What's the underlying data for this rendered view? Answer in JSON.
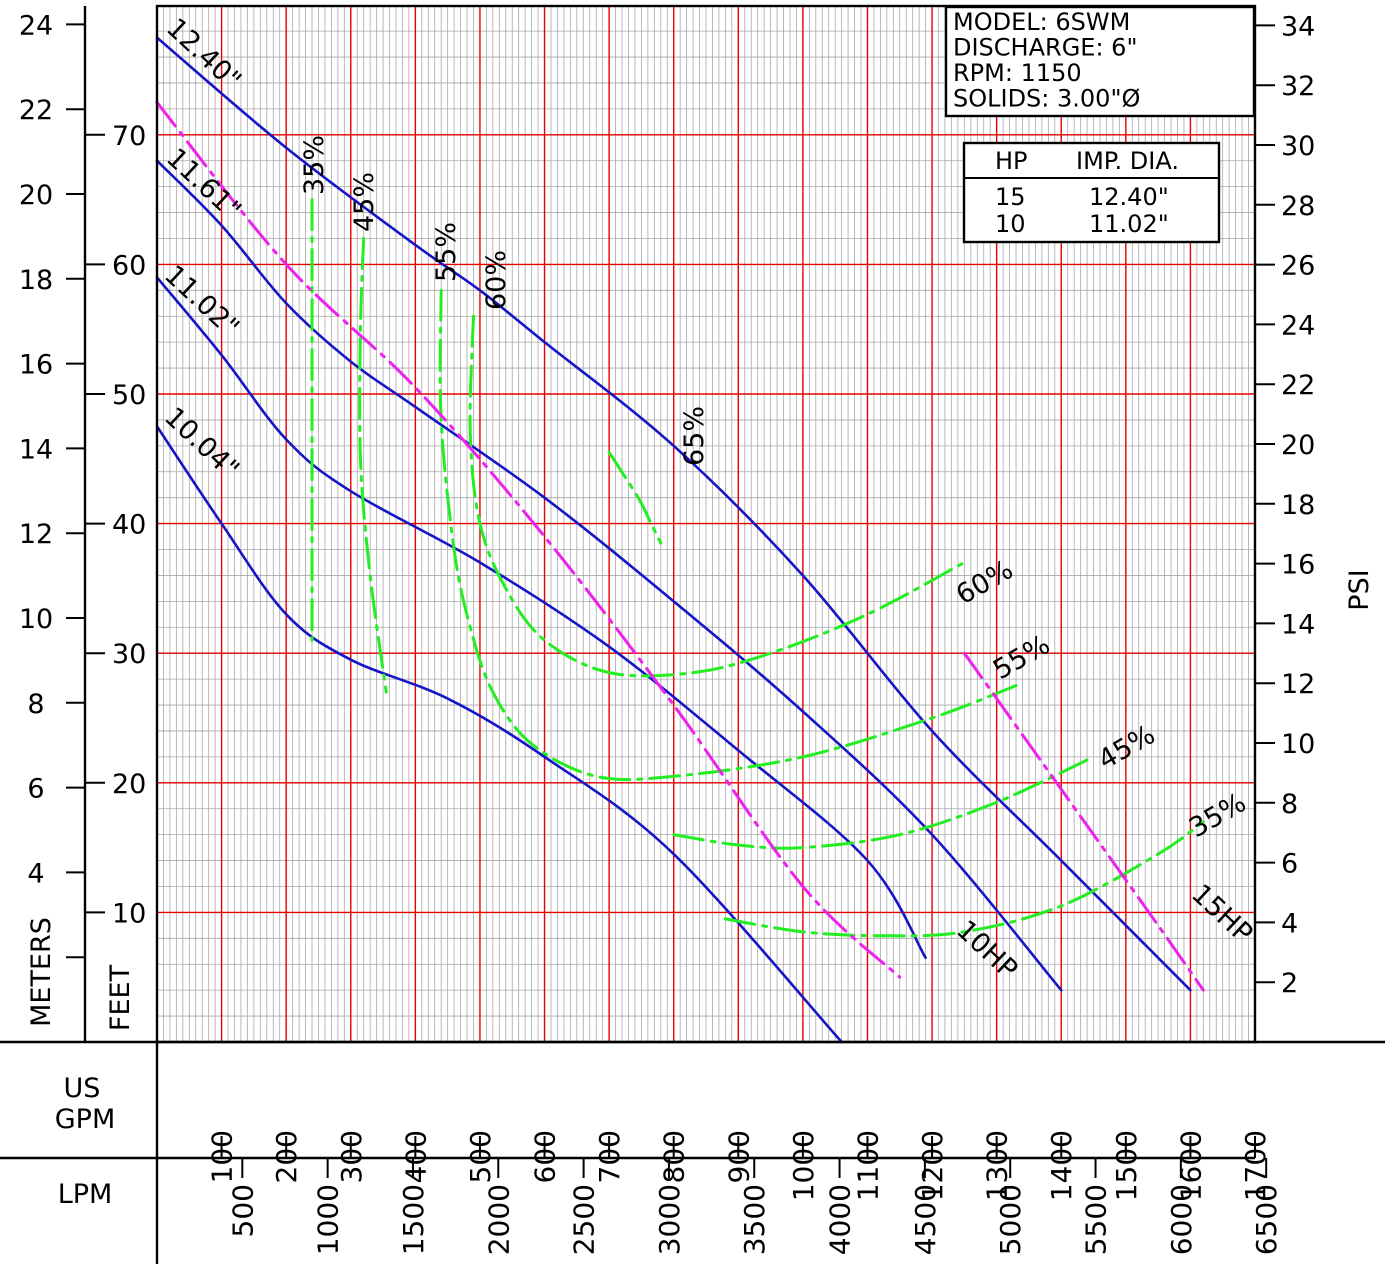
{
  "chart_data": {
    "type": "line",
    "title": "",
    "x_unit_label": [
      "US",
      "GPM"
    ],
    "x_secondary_label": "LPM",
    "y_left_outer_label": "METERS",
    "y_left_inner_label": "FEET",
    "y_right_label": "PSI",
    "xlim": [
      0,
      1700
    ],
    "ylim_feet": [
      0,
      78.5
    ],
    "x_ticks_gpm": [
      "100",
      "200",
      "300",
      "400",
      "500",
      "600",
      "700",
      "800",
      "900",
      "1000",
      "1100",
      "1200",
      "1300",
      "1400",
      "1500",
      "1600",
      "1700"
    ],
    "x_ticks_lpm": [
      "500",
      "1000",
      "1500",
      "2000",
      "2500",
      "3000",
      "3500",
      "4000",
      "4500",
      "5000",
      "5500",
      "6000",
      "6500"
    ],
    "y_ticks_meters": [
      "4",
      "6",
      "8",
      "10",
      "12",
      "14",
      "16",
      "18",
      "20",
      "22",
      "24"
    ],
    "y_ticks_feet": [
      "10",
      "20",
      "30",
      "40",
      "50",
      "60",
      "70"
    ],
    "y_ticks_psi": [
      "2",
      "4",
      "6",
      "8",
      "10",
      "12",
      "14",
      "16",
      "18",
      "20",
      "22",
      "24",
      "26",
      "28",
      "30",
      "32",
      "34"
    ],
    "model_box": [
      "MODEL: 6SWM",
      "DISCHARGE: 6\"",
      "RPM: 1150",
      "SOLIDS: 3.00\"Ø"
    ],
    "hp_table": {
      "headers": [
        "HP",
        "IMP. DIA."
      ],
      "rows": [
        [
          "15",
          "12.40\""
        ],
        [
          "10",
          "11.02\""
        ]
      ]
    },
    "series": [
      {
        "name": "12.40\"",
        "kind": "impeller",
        "color": "#1515c8",
        "points": [
          [
            0,
            77.5
          ],
          [
            200,
            69
          ],
          [
            400,
            61.5
          ],
          [
            500,
            58
          ],
          [
            600,
            54
          ],
          [
            800,
            46
          ],
          [
            1000,
            36
          ],
          [
            1200,
            24
          ],
          [
            1400,
            14
          ],
          [
            1600,
            4
          ]
        ]
      },
      {
        "name": "11.61\"",
        "kind": "impeller",
        "color": "#1515c8",
        "points": [
          [
            0,
            68
          ],
          [
            100,
            63
          ],
          [
            200,
            57
          ],
          [
            300,
            52.5
          ],
          [
            400,
            49
          ],
          [
            600,
            42
          ],
          [
            800,
            34
          ],
          [
            1000,
            25.5
          ],
          [
            1200,
            16
          ],
          [
            1400,
            4
          ]
        ]
      },
      {
        "name": "11.02\"",
        "kind": "impeller",
        "color": "#1515c8",
        "points": [
          [
            0,
            59
          ],
          [
            100,
            53
          ],
          [
            200,
            46.5
          ],
          [
            300,
            42.5
          ],
          [
            500,
            37
          ],
          [
            700,
            30.5
          ],
          [
            900,
            22.5
          ],
          [
            1100,
            14
          ],
          [
            1190,
            6.5
          ]
        ]
      },
      {
        "name": "10.04\"",
        "kind": "impeller",
        "color": "#1515c8",
        "points": [
          [
            0,
            47.5
          ],
          [
            100,
            40
          ],
          [
            200,
            33
          ],
          [
            300,
            29.5
          ],
          [
            450,
            26.5
          ],
          [
            600,
            22
          ],
          [
            800,
            14.5
          ],
          [
            1060,
            0
          ]
        ]
      },
      {
        "name": "35%",
        "kind": "efficiency",
        "color": "#22ee22",
        "points": [
          [
            240,
            65
          ],
          [
            240,
            31
          ]
        ]
      },
      {
        "name": "45%",
        "kind": "efficiency",
        "color": "#22ee22",
        "points": [
          [
            320,
            62
          ],
          [
            315,
            55
          ],
          [
            315,
            45
          ],
          [
            330,
            36
          ],
          [
            355,
            27
          ]
        ]
      },
      {
        "name": "55%",
        "kind": "efficiency",
        "color": "#22ee22",
        "points": [
          [
            440,
            58
          ],
          [
            440,
            48
          ],
          [
            460,
            38
          ],
          [
            485,
            32
          ],
          [
            520,
            27
          ],
          [
            580,
            23
          ],
          [
            680,
            20.5
          ],
          [
            800,
            20.5
          ],
          [
            1000,
            22
          ],
          [
            1200,
            25
          ],
          [
            1330,
            27.5
          ]
        ]
      },
      {
        "name": "60%",
        "kind": "efficiency",
        "color": "#22ee22",
        "points": [
          [
            490,
            56
          ],
          [
            485,
            47
          ],
          [
            500,
            40
          ],
          [
            540,
            35
          ],
          [
            600,
            31
          ],
          [
            700,
            28.5
          ],
          [
            830,
            28.5
          ],
          [
            950,
            30
          ],
          [
            1100,
            33
          ],
          [
            1250,
            37
          ]
        ]
      },
      {
        "name": "65%",
        "kind": "efficiency",
        "color": "#22ee22",
        "points": [
          [
            700,
            45.5
          ],
          [
            745,
            42
          ],
          [
            765,
            40
          ],
          [
            780,
            38.5
          ]
        ]
      },
      {
        "name": "45%",
        "kind": "efficiency",
        "color": "#22ee22",
        "points": [
          [
            800,
            16
          ],
          [
            900,
            15.2
          ],
          [
            1000,
            15
          ],
          [
            1150,
            16
          ],
          [
            1300,
            18.5
          ],
          [
            1450,
            22
          ]
        ]
      },
      {
        "name": "35%",
        "kind": "efficiency",
        "color": "#22ee22",
        "points": [
          [
            880,
            9.5
          ],
          [
            1000,
            8.5
          ],
          [
            1120,
            8.2
          ],
          [
            1250,
            8.5
          ],
          [
            1400,
            10.5
          ],
          [
            1550,
            14.5
          ],
          [
            1620,
            17
          ]
        ]
      },
      {
        "name": "10HP",
        "kind": "horsepower",
        "color": "#ee22ee",
        "points": [
          [
            0,
            72.5
          ],
          [
            200,
            60
          ],
          [
            400,
            50.5
          ],
          [
            600,
            39
          ],
          [
            800,
            26
          ],
          [
            1000,
            12
          ],
          [
            1150,
            5
          ]
        ]
      },
      {
        "name": "15HP",
        "kind": "horsepower",
        "color": "#ee22ee",
        "points": [
          [
            1250,
            30
          ],
          [
            1350,
            23
          ],
          [
            1450,
            16
          ],
          [
            1550,
            9
          ],
          [
            1620,
            4
          ]
        ]
      }
    ]
  }
}
